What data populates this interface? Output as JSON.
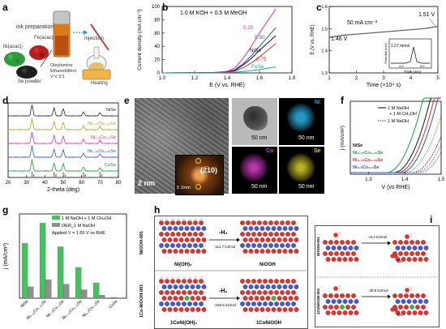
{
  "panels": {
    "a": {
      "letter": "a",
      "steps": [
        "ink preparation",
        "injection",
        "Heating"
      ],
      "reagents": [
        "Ni(acac)₂",
        "Fe(acac)₃",
        "Se powder"
      ],
      "solvent_lines": [
        "Oleylamine",
        "Ethanedithiol",
        "V:V 3:1"
      ]
    },
    "b": {
      "letter": "b",
      "condition": "1.0 M KOH + 0.5 M MeOH",
      "xlabel": "E (V vs. RHE)",
      "ylabel": "Current density (mA cm⁻²)",
      "xticks": [
        "1.0",
        "1.2",
        "1.4",
        "1.6",
        "1.8"
      ],
      "yticks": [
        "0",
        "20",
        "40",
        "60",
        "80",
        "100"
      ],
      "labels": [
        {
          "text": "0.25",
          "color": "#d6339b"
        },
        {
          "text": "0.50",
          "color": "#2a54c8"
        },
        {
          "text": "NiSe",
          "color": "#111111"
        },
        {
          "text": "0.75",
          "color": "#d92b2b"
        },
        {
          "text": "FeSe",
          "color": "#14a89a"
        }
      ]
    },
    "c": {
      "letter": "c",
      "current_label": "50 mA cm⁻²",
      "v_start": "1.46 V",
      "v_end": "1.51 V",
      "xlabel": "Time (×10⁴ s)",
      "ylabel": "E (V vs. RHE)",
      "xticks": [
        "1",
        "2",
        "3",
        "4",
        "5"
      ],
      "yticks": [
        "1.3",
        "1.4",
        "1.5",
        "1.6"
      ],
      "inset_label": "1.27 mmol",
      "inset_ylabel": "Potential (mV)",
      "inset_xlabel": "Time (min)",
      "inset_xticks": [
        "4.9",
        "5.6"
      ]
    },
    "d": {
      "letter": "d",
      "xlabel": "2-theta (deg)",
      "xticks": [
        "20",
        "30",
        "40",
        "50",
        "60",
        "70",
        "80"
      ],
      "traces": [
        {
          "name": "NiSe",
          "color": "#222222"
        },
        {
          "name": "Ni₀.₇₅Co₀.₂₅Se",
          "color": "#a6a61c"
        },
        {
          "name": "Ni₀.₅Co₀.₅Se",
          "color": "#d6339b"
        },
        {
          "name": "Ni₀.₂₅Co₀.₇₅Se",
          "color": "#2a54c8"
        },
        {
          "name": "CoSe",
          "color": "#1c9a3a"
        }
      ]
    },
    "e": {
      "letter": "e",
      "hrtem_scale": "2 nm",
      "fft_scale": "5 1/nm",
      "fft_plane": "(2̅10)",
      "map_scale": "50 nm",
      "elements": [
        {
          "name": "Ni",
          "color": "#2aa8d8"
        },
        {
          "name": "Co",
          "color": "#d63fc8"
        },
        {
          "name": "Se",
          "color": "#d6d02a"
        }
      ]
    },
    "f": {
      "letter": "f",
      "legend": [
        "1 M NaOH",
        "+ 1 M CH₃OH",
        "1 M NaOH"
      ],
      "xlabel": "V (vs RHE)",
      "ylabel": "j (mA/cm²)",
      "xticks": [
        "1.3",
        "1.4",
        "1.5"
      ],
      "series": [
        {
          "name": "NiSe",
          "color": "#111111"
        },
        {
          "name": "Ni₀.₇₅Co₀.₂₅Se",
          "color": "#1c9a3a"
        },
        {
          "name": "Ni₀.₇₅Co₀.₂₅Se",
          "color": "#d92b2b"
        },
        {
          "name": "Ni₀.₅Co₀.₅Se",
          "color": "#2a54c8"
        }
      ]
    },
    "g": {
      "letter": "g",
      "legend": [
        "1 M NaOH + 1 M CH₃OH",
        "OER_1 M NaOH"
      ],
      "condition": "Applied V = 1.65 V vs RHE",
      "ylabel": "j (mA/cm²)"
    },
    "h": {
      "letter": "h",
      "row_tags": [
        "NiOOH-001",
        "1Co-NiOOH-001"
      ],
      "arrow_label": "-H₂",
      "energies": [
        "-111.7 kJ/mol",
        "-158.5 kJ/mol"
      ],
      "names": [
        "Ni(OH)₂",
        "NiOOH",
        "1CoNi(OH)₂",
        "1CoNiOOH"
      ]
    },
    "i": {
      "letter": "i",
      "row_tags": [
        "NiOOH-001",
        "1CoNiOOH-001"
      ],
      "energies": [
        "+8.2 kJ/mol",
        "-30.6 kJ/mol"
      ],
      "species": "O₂"
    }
  },
  "chart_data": [
    {
      "type": "line",
      "panel": "b",
      "xlabel": "E (V vs. RHE)",
      "ylabel": "Current density (mA cm⁻²)",
      "xlim": [
        1.0,
        1.8
      ],
      "ylim": [
        0,
        100
      ],
      "series": [
        {
          "name": "0.25",
          "color": "#d6339b",
          "x": [
            1.0,
            1.3,
            1.4,
            1.45,
            1.5,
            1.55,
            1.6,
            1.65,
            1.7
          ],
          "y": [
            0,
            0.5,
            2,
            8,
            22,
            40,
            60,
            78,
            96
          ]
        },
        {
          "name": "0.50",
          "color": "#2a54c8",
          "x": [
            1.0,
            1.3,
            1.4,
            1.45,
            1.5,
            1.55,
            1.6,
            1.65,
            1.7
          ],
          "y": [
            0,
            0.5,
            1.5,
            5,
            14,
            26,
            40,
            54,
            68
          ]
        },
        {
          "name": "NiSe",
          "color": "#111111",
          "x": [
            1.0,
            1.3,
            1.4,
            1.45,
            1.5,
            1.55,
            1.6,
            1.65,
            1.7
          ],
          "y": [
            0,
            0.4,
            1,
            4,
            12,
            22,
            34,
            45,
            56
          ]
        },
        {
          "name": "0.75",
          "color": "#d92b2b",
          "x": [
            1.0,
            1.3,
            1.4,
            1.45,
            1.5,
            1.55,
            1.6,
            1.65,
            1.7
          ],
          "y": [
            0,
            0.3,
            0.8,
            3,
            8,
            15,
            24,
            34,
            44
          ]
        },
        {
          "name": "FeSe",
          "color": "#14a89a",
          "x": [
            1.0,
            1.3,
            1.4,
            1.5,
            1.6,
            1.7
          ],
          "y": [
            0,
            0.2,
            0.5,
            2,
            5,
            9
          ]
        }
      ]
    },
    {
      "type": "line",
      "panel": "c",
      "xlabel": "Time (×10⁴ s)",
      "ylabel": "E (V vs. RHE)",
      "xlim": [
        1,
        5
      ],
      "ylim": [
        1.3,
        1.6
      ],
      "series": [
        {
          "name": "chronopotentiometry",
          "color": "#555555",
          "x": [
            1.0,
            1.5,
            2.0,
            2.5,
            3.0,
            3.5,
            4.0,
            4.5,
            5.0
          ],
          "y": [
            1.46,
            1.47,
            1.475,
            1.48,
            1.485,
            1.49,
            1.495,
            1.5,
            1.51
          ]
        }
      ]
    },
    {
      "type": "bar",
      "panel": "g",
      "ylabel": "j (mA/cm²)",
      "ylim": [
        0,
        200
      ],
      "categories": [
        "NiSe",
        "Ni₀.₇₅Co₀.₂₅Se",
        "Ni₀.₅Co₀.₅Se",
        "Ni₀.₂₅Co₀.₇₅Se",
        "Ni₀.₁Co₀.₉Se",
        "CoSe"
      ],
      "series": [
        {
          "name": "1 M NaOH + 1 M CH₃OH",
          "color": "#3fc55a",
          "values": [
            130,
            178,
            122,
            73,
            36,
            2
          ]
        },
        {
          "name": "OER_1 M NaOH",
          "color": "#8f8f8f",
          "values": [
            27,
            44,
            33,
            20,
            7,
            1
          ]
        }
      ]
    }
  ]
}
